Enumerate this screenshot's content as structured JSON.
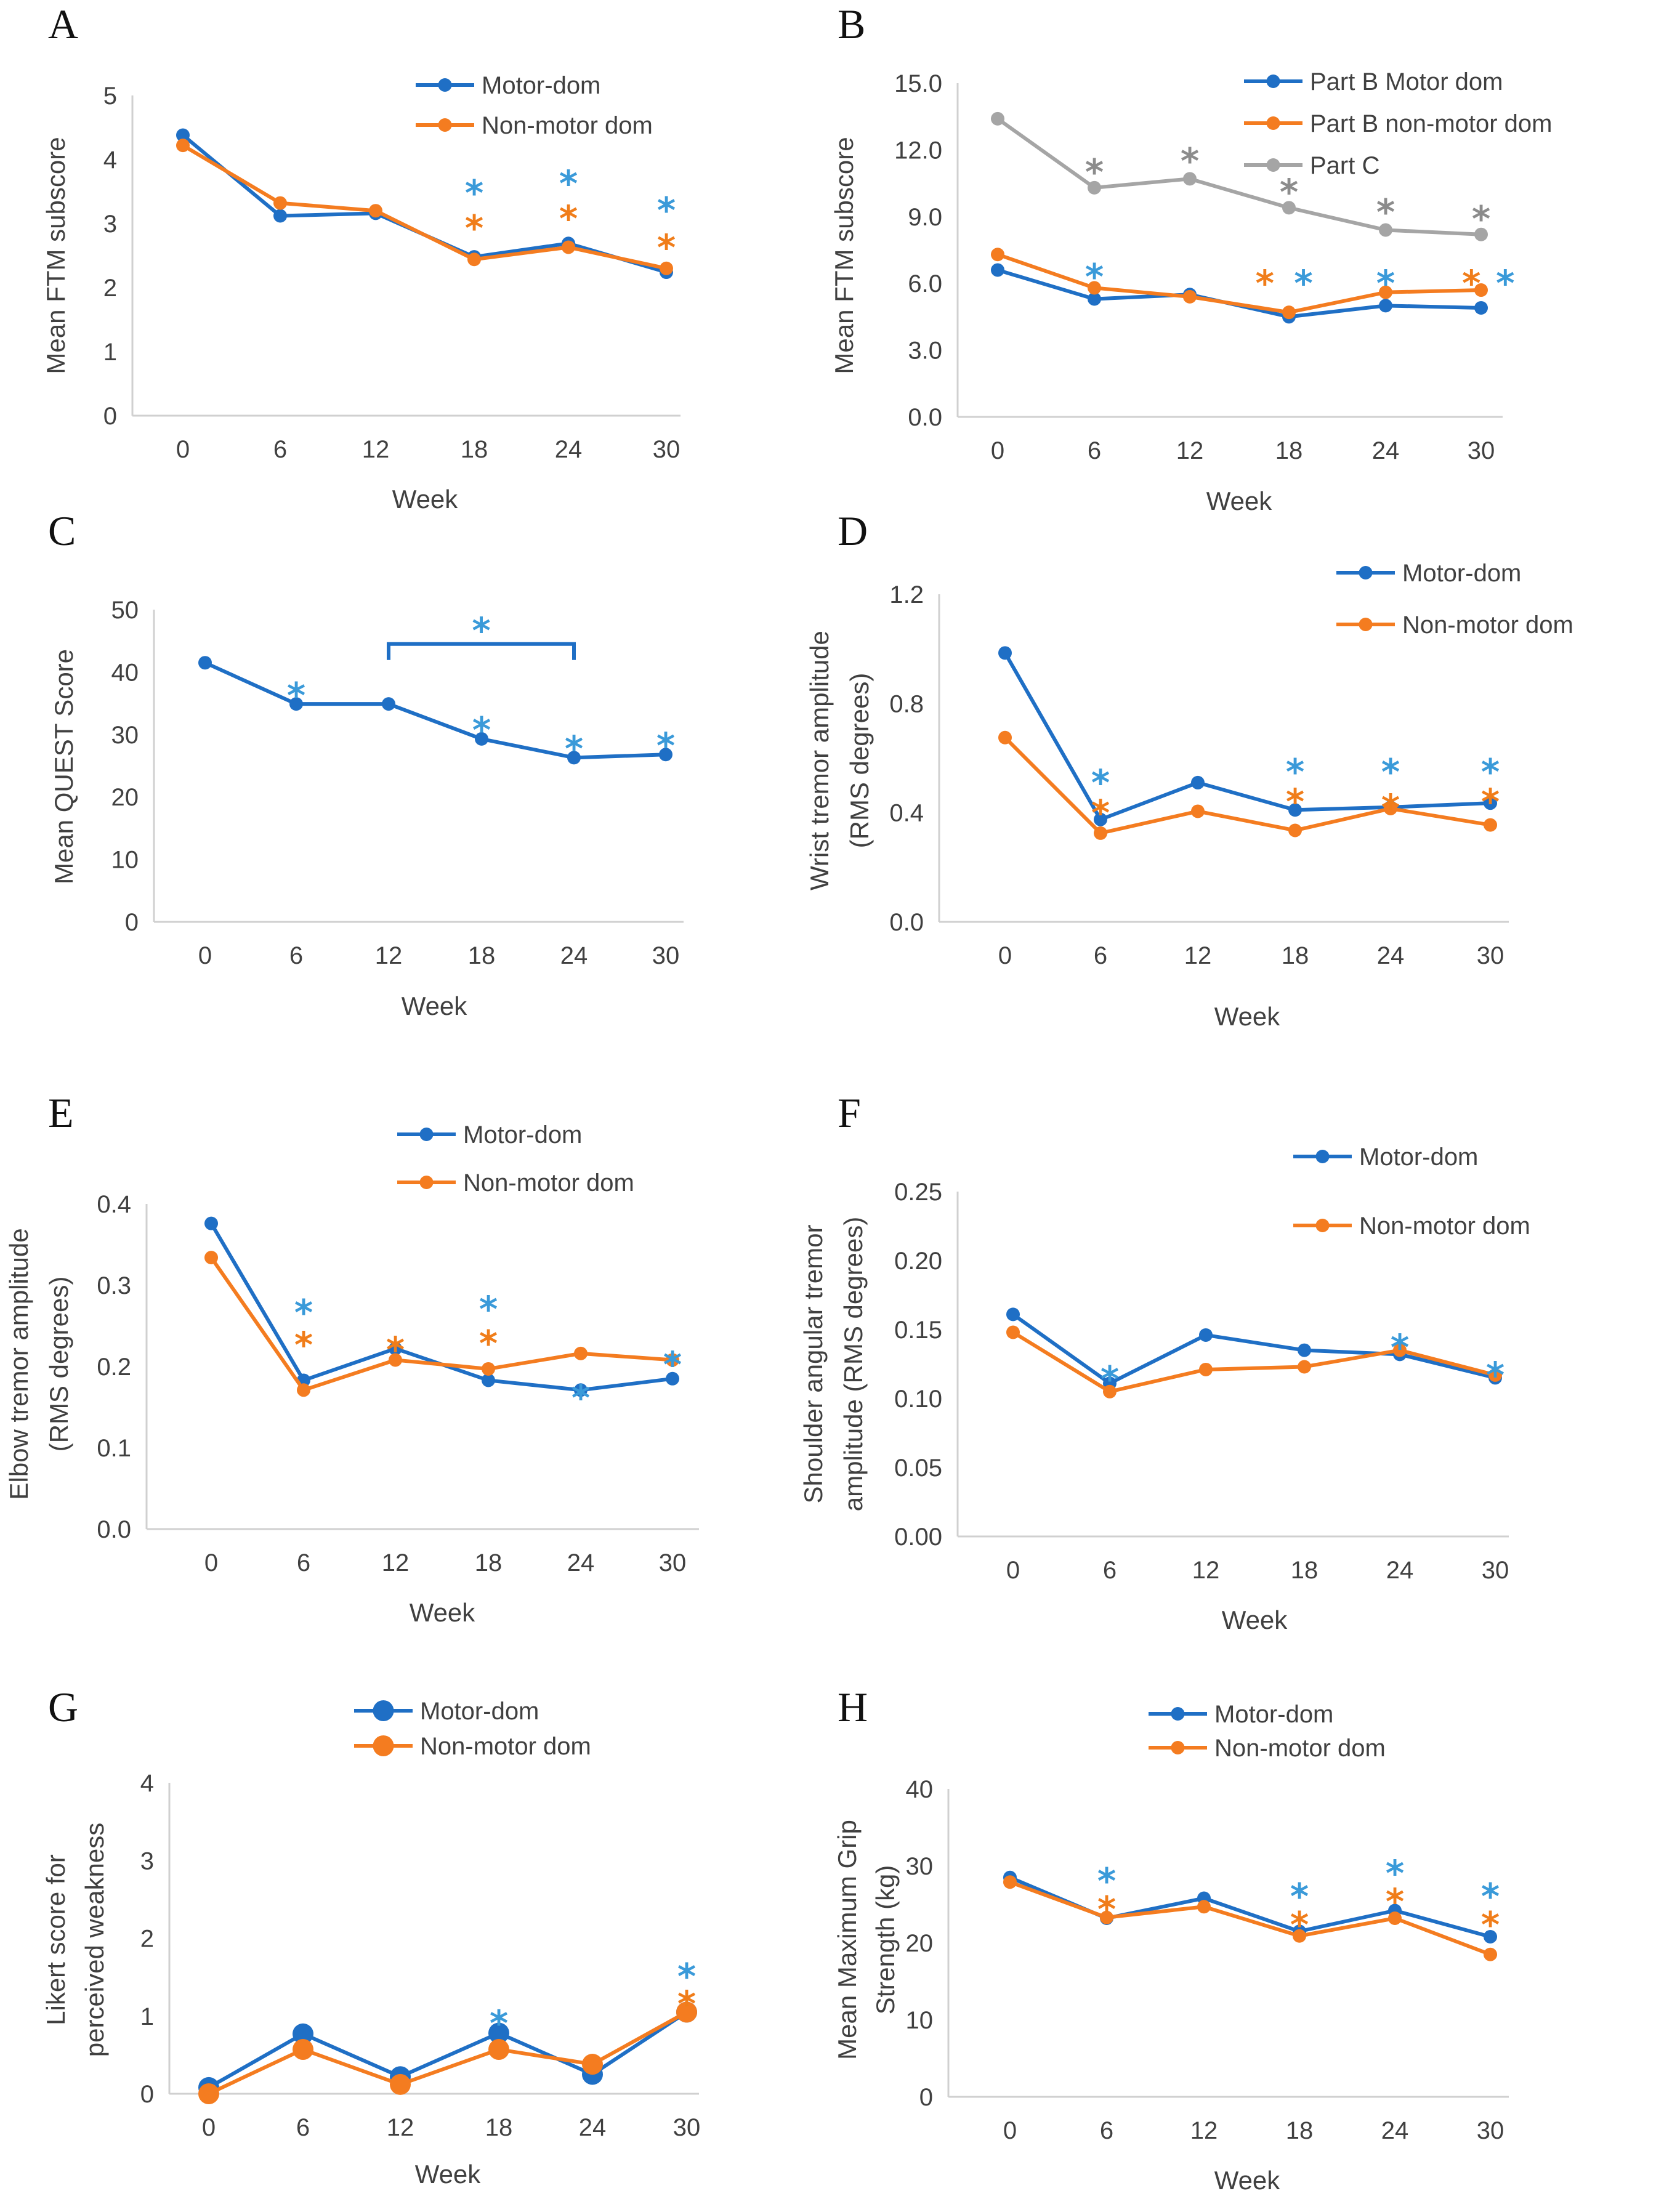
{
  "colors": {
    "blue": "#1f6fc5",
    "orange": "#f47c20",
    "gray": "#a5a5a5",
    "star_blue": "#3a9ad9",
    "star_orange": "#f07d1a",
    "star_gray": "#8c8c8c",
    "axis": "#d0d0d0"
  },
  "chart_data": [
    {
      "panel": "A",
      "type": "line",
      "xlabel": "Week",
      "ylabel": "Mean FTM subscore",
      "categories": [
        "0",
        "6",
        "12",
        "18",
        "24",
        "30"
      ],
      "ylim": [
        0,
        5
      ],
      "yticks": [
        "0",
        "1",
        "2",
        "3",
        "4",
        "5"
      ],
      "legend_position": "top-right",
      "series": [
        {
          "name": "Motor-dom",
          "color": "blue",
          "values": [
            4.38,
            3.12,
            3.16,
            2.48,
            2.69,
            2.24
          ]
        },
        {
          "name": "Non-motor dom",
          "color": "orange",
          "values": [
            4.22,
            3.32,
            3.2,
            2.44,
            2.63,
            2.3
          ]
        }
      ],
      "annotations": [
        {
          "text": "*",
          "x": "18",
          "y": 3.65,
          "color": "star_blue"
        },
        {
          "text": "*",
          "x": "18",
          "y": 3.1,
          "color": "star_orange"
        },
        {
          "text": "*",
          "x": "24",
          "y": 3.8,
          "color": "star_blue"
        },
        {
          "text": "*",
          "x": "24",
          "y": 3.25,
          "color": "star_orange"
        },
        {
          "text": "*",
          "x": "30",
          "y": 3.38,
          "color": "star_blue"
        },
        {
          "text": "*",
          "x": "30",
          "y": 2.8,
          "color": "star_orange"
        }
      ]
    },
    {
      "panel": "B",
      "type": "line",
      "xlabel": "Week",
      "ylabel": "Mean FTM subscore",
      "categories": [
        "0",
        "6",
        "12",
        "18",
        "24",
        "30"
      ],
      "ylim": [
        0,
        15
      ],
      "yticks": [
        "0.0",
        "3.0",
        "6.0",
        "9.0",
        "12.0",
        "15.0"
      ],
      "legend_position": "top-right",
      "series": [
        {
          "name": "Part B Motor dom",
          "color": "blue",
          "values": [
            6.6,
            5.3,
            5.5,
            4.5,
            5.0,
            4.9
          ]
        },
        {
          "name": "Part B non-motor dom",
          "color": "orange",
          "values": [
            7.3,
            5.8,
            5.4,
            4.7,
            5.6,
            5.7
          ]
        },
        {
          "name": "Part C",
          "color": "gray",
          "values": [
            13.4,
            10.3,
            10.7,
            9.4,
            8.4,
            8.2
          ]
        }
      ],
      "annotations": [
        {
          "text": "*",
          "x": "6",
          "y": 11.5,
          "color": "star_gray"
        },
        {
          "text": "*",
          "x": "12",
          "y": 12.0,
          "color": "star_gray"
        },
        {
          "text": "*",
          "x": "18",
          "y": 10.6,
          "color": "star_gray"
        },
        {
          "text": "*",
          "x": "24",
          "y": 9.7,
          "color": "star_gray"
        },
        {
          "text": "*",
          "x": "30",
          "y": 9.4,
          "color": "star_gray"
        },
        {
          "text": "*",
          "x": "6",
          "y": 6.8,
          "color": "star_blue"
        },
        {
          "text": "*",
          "x": "18",
          "y": 6.5,
          "dx": -0.25,
          "color": "star_orange"
        },
        {
          "text": "*",
          "x": "18",
          "y": 6.5,
          "dx": 0.15,
          "color": "star_blue"
        },
        {
          "text": "*",
          "x": "24",
          "y": 6.5,
          "color": "star_blue"
        },
        {
          "text": "*",
          "x": "30",
          "y": 6.5,
          "dx": -0.1,
          "color": "star_orange"
        },
        {
          "text": "*",
          "x": "30",
          "y": 6.5,
          "dx": 0.25,
          "color": "star_blue"
        }
      ]
    },
    {
      "panel": "C",
      "type": "line",
      "xlabel": "Week",
      "ylabel": "Mean QUEST Score",
      "categories": [
        "0",
        "6",
        "12",
        "18",
        "24",
        "30"
      ],
      "ylim": [
        0,
        50
      ],
      "yticks": [
        "0",
        "10",
        "20",
        "30",
        "40",
        "50"
      ],
      "series": [
        {
          "name": "QUEST",
          "color": "blue",
          "values": [
            41.5,
            34.9,
            34.9,
            29.3,
            26.3,
            26.8
          ]
        }
      ],
      "bracket": {
        "from": "12",
        "to": "24",
        "y": 44.5,
        "label": "*"
      },
      "annotations": [
        {
          "text": "*",
          "x": "6",
          "y": 38.0,
          "color": "star_blue"
        },
        {
          "text": "*",
          "x": "18",
          "y": 32.5,
          "color": "star_blue"
        },
        {
          "text": "*",
          "x": "24",
          "y": 29.5,
          "color": "star_blue"
        },
        {
          "text": "*",
          "x": "30",
          "y": 30.0,
          "color": "star_blue"
        }
      ]
    },
    {
      "panel": "D",
      "type": "line",
      "xlabel": "Week",
      "ylabel": "Wrist tremor amplitude",
      "ylabel2": "(RMS degrees)",
      "categories": [
        "0",
        "6",
        "12",
        "18",
        "24",
        "30"
      ],
      "ylim": [
        0,
        1.2
      ],
      "yticks": [
        "0.0",
        "0.4",
        "0.8",
        "1.2"
      ],
      "legend_position": "top-right",
      "series": [
        {
          "name": "Motor-dom",
          "color": "blue",
          "values": [
            0.985,
            0.375,
            0.51,
            0.41,
            0.42,
            0.435
          ]
        },
        {
          "name": "Non-motor dom",
          "color": "orange",
          "values": [
            0.675,
            0.325,
            0.405,
            0.335,
            0.415,
            0.355
          ]
        }
      ],
      "annotations": [
        {
          "text": "*",
          "x": "6",
          "y": 0.55,
          "color": "star_blue"
        },
        {
          "text": "*",
          "x": "6",
          "y": 0.44,
          "color": "star_orange"
        },
        {
          "text": "*",
          "x": "18",
          "y": 0.59,
          "color": "star_blue"
        },
        {
          "text": "*",
          "x": "18",
          "y": 0.48,
          "color": "star_orange"
        },
        {
          "text": "*",
          "x": "24",
          "y": 0.59,
          "color": "star_blue"
        },
        {
          "text": "*",
          "x": "24",
          "y": 0.46,
          "color": "star_orange"
        },
        {
          "text": "*",
          "x": "30",
          "y": 0.59,
          "color": "star_blue"
        },
        {
          "text": "*",
          "x": "30",
          "y": 0.48,
          "color": "star_orange"
        }
      ]
    },
    {
      "panel": "E",
      "type": "line",
      "xlabel": "Week",
      "ylabel": "Elbow tremor amplitude",
      "ylabel2": "(RMS degrees)",
      "categories": [
        "0",
        "6",
        "12",
        "18",
        "24",
        "30"
      ],
      "ylim": [
        0,
        0.4
      ],
      "yticks": [
        "0.0",
        "0.1",
        "0.2",
        "0.3",
        "0.4"
      ],
      "legend_position": "top-right",
      "series": [
        {
          "name": "Motor-dom",
          "color": "blue",
          "values": [
            0.376,
            0.183,
            0.222,
            0.183,
            0.171,
            0.185
          ]
        },
        {
          "name": "Non-motor dom",
          "color": "orange",
          "values": [
            0.334,
            0.171,
            0.208,
            0.197,
            0.216,
            0.208
          ]
        }
      ],
      "annotations": [
        {
          "text": "*",
          "x": "6",
          "y": 0.28,
          "color": "star_blue"
        },
        {
          "text": "*",
          "x": "6",
          "y": 0.24,
          "color": "star_orange"
        },
        {
          "text": "*",
          "x": "12",
          "y": 0.234,
          "color": "star_orange"
        },
        {
          "text": "*",
          "x": "18",
          "y": 0.284,
          "color": "star_blue"
        },
        {
          "text": "*",
          "x": "18",
          "y": 0.242,
          "color": "star_orange"
        },
        {
          "text": "*",
          "x": "24",
          "y": 0.175,
          "color": "star_blue"
        },
        {
          "text": "*",
          "x": "30",
          "y": 0.216,
          "color": "star_blue"
        }
      ]
    },
    {
      "panel": "F",
      "type": "line",
      "xlabel": "Week",
      "ylabel": "Shoulder angular tremor",
      "ylabel2": "amplitude (RMS degrees)",
      "categories": [
        "0",
        "6",
        "12",
        "18",
        "24",
        "30"
      ],
      "ylim": [
        0,
        0.25
      ],
      "yticks": [
        "0.00",
        "0.05",
        "0.10",
        "0.15",
        "0.20",
        "0.25"
      ],
      "legend_position": "top-right",
      "series": [
        {
          "name": "Motor-dom",
          "color": "blue",
          "values": [
            0.161,
            0.111,
            0.146,
            0.135,
            0.132,
            0.115
          ]
        },
        {
          "name": "Non-motor dom",
          "color": "orange",
          "values": [
            0.148,
            0.105,
            0.121,
            0.123,
            0.135,
            0.117
          ]
        }
      ],
      "annotations": [
        {
          "text": "*",
          "x": "6",
          "y": 0.122,
          "color": "star_blue"
        },
        {
          "text": "*",
          "x": "24",
          "y": 0.145,
          "color": "star_blue"
        },
        {
          "text": "*",
          "x": "30",
          "y": 0.125,
          "color": "star_blue"
        }
      ]
    },
    {
      "panel": "G",
      "type": "line",
      "xlabel": "Week",
      "ylabel": "Likert score for",
      "ylabel2": "perceived weakness",
      "categories": [
        "0",
        "6",
        "12",
        "18",
        "24",
        "30"
      ],
      "ylim": [
        0,
        4
      ],
      "yticks": [
        "0",
        "1",
        "2",
        "3",
        "4"
      ],
      "legend_position": "top-right",
      "large_markers": true,
      "series": [
        {
          "name": "Motor-dom",
          "color": "blue",
          "values": [
            0.08,
            0.77,
            0.22,
            0.78,
            0.25,
            1.05
          ]
        },
        {
          "name": "Non-motor dom",
          "color": "orange",
          "values": [
            0.0,
            0.57,
            0.12,
            0.57,
            0.38,
            1.05
          ]
        }
      ],
      "annotations": [
        {
          "text": "*",
          "x": "18",
          "y": 1.05,
          "color": "star_blue"
        },
        {
          "text": "*",
          "x": "30",
          "y": 1.65,
          "color": "star_blue"
        },
        {
          "text": "*",
          "x": "30",
          "y": 1.3,
          "color": "star_orange"
        }
      ]
    },
    {
      "panel": "H",
      "type": "line",
      "xlabel": "Week",
      "ylabel": "Mean Maximum Grip",
      "ylabel2": "Strength (kg)",
      "categories": [
        "0",
        "6",
        "12",
        "18",
        "24",
        "30"
      ],
      "ylim": [
        0,
        40
      ],
      "yticks": [
        "0",
        "10",
        "20",
        "30",
        "40"
      ],
      "legend_position": "top-right",
      "series": [
        {
          "name": "Motor-dom",
          "color": "blue",
          "values": [
            28.5,
            23.2,
            25.8,
            21.5,
            24.2,
            20.8
          ]
        },
        {
          "name": "Non-motor dom",
          "color": "orange",
          "values": [
            27.9,
            23.3,
            24.7,
            20.9,
            23.2,
            18.5
          ]
        }
      ],
      "annotations": [
        {
          "text": "*",
          "x": "6",
          "y": 29.5,
          "color": "star_blue"
        },
        {
          "text": "*",
          "x": "6",
          "y": 25.8,
          "color": "star_orange"
        },
        {
          "text": "*",
          "x": "18",
          "y": 27.5,
          "color": "star_blue"
        },
        {
          "text": "*",
          "x": "18",
          "y": 23.8,
          "color": "star_orange"
        },
        {
          "text": "*",
          "x": "24",
          "y": 30.5,
          "color": "star_blue"
        },
        {
          "text": "*",
          "x": "24",
          "y": 26.8,
          "color": "star_orange"
        },
        {
          "text": "*",
          "x": "30",
          "y": 27.5,
          "color": "star_blue"
        },
        {
          "text": "*",
          "x": "30",
          "y": 23.8,
          "color": "star_orange"
        }
      ]
    }
  ]
}
